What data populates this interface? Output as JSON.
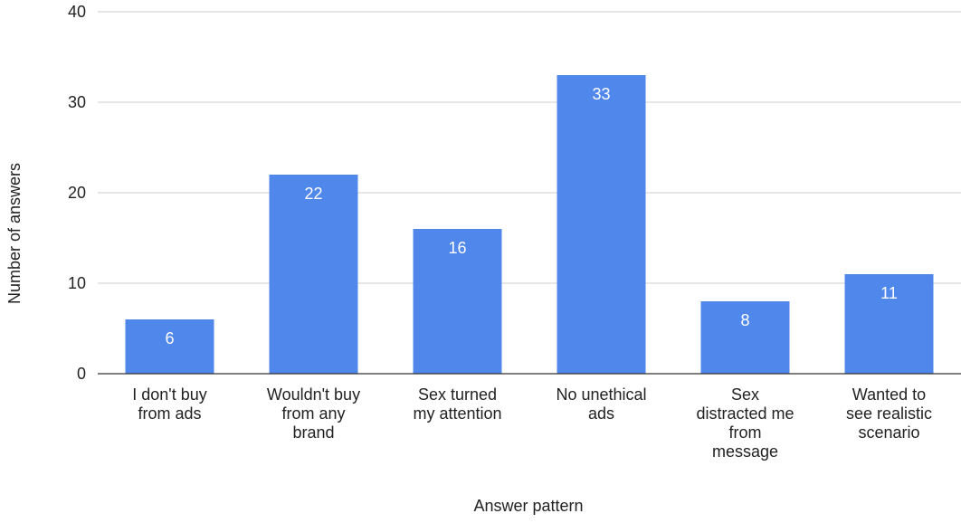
{
  "chart_data": {
    "type": "bar",
    "title": "",
    "xlabel": "Answer pattern",
    "ylabel": "Number of answers",
    "ylim": [
      0,
      40
    ],
    "yticks": [
      0,
      10,
      20,
      30,
      40
    ],
    "grid": true,
    "legend": "none",
    "bar_color": "#5087ea",
    "categories": [
      [
        "I don't buy",
        "from ads"
      ],
      [
        "Wouldn't buy",
        "from any",
        "brand"
      ],
      [
        "Sex turned",
        "my attention"
      ],
      [
        "No unethical",
        "ads"
      ],
      [
        "Sex",
        "distracted me",
        "from",
        "message"
      ],
      [
        "Wanted to",
        "see realistic",
        "scenario"
      ]
    ],
    "values": [
      6,
      22,
      16,
      33,
      8,
      11
    ]
  }
}
